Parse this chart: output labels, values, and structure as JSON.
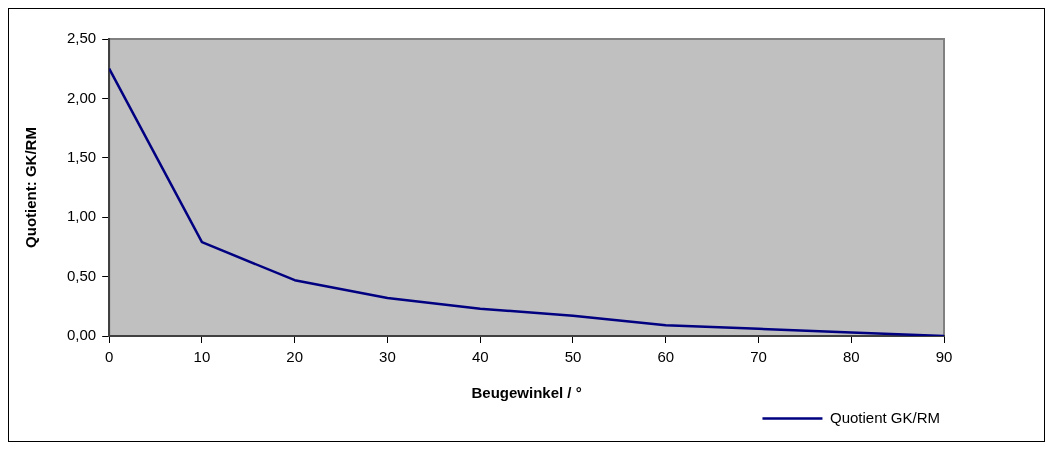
{
  "chart_data": {
    "type": "line",
    "xlabel": "Beugewinkel / °",
    "ylabel": "Quotient: GK/RM",
    "x": [
      0,
      10,
      20,
      30,
      40,
      50,
      60,
      70,
      80,
      90
    ],
    "series": [
      {
        "name": "Quotient GK/RM",
        "color": "#000080",
        "values": [
          2.25,
          0.79,
          0.47,
          0.32,
          0.23,
          0.17,
          0.09,
          0.06,
          0.03,
          0.0
        ]
      }
    ],
    "xlim": [
      0,
      90
    ],
    "xticks": [
      0,
      10,
      20,
      30,
      40,
      50,
      60,
      70,
      80,
      90
    ],
    "ylim": [
      0,
      2.5
    ],
    "yticks": [
      {
        "value": 0,
        "label": "0,00"
      },
      {
        "value": 0.5,
        "label": "0,50"
      },
      {
        "value": 1,
        "label": "1,00"
      },
      {
        "value": 1.5,
        "label": "1,50"
      },
      {
        "value": 2,
        "label": "2,00"
      },
      {
        "value": 2.5,
        "label": "2,50"
      }
    ],
    "grid": false,
    "legend": "bottom right",
    "marker": "none",
    "line_style": "solid"
  }
}
